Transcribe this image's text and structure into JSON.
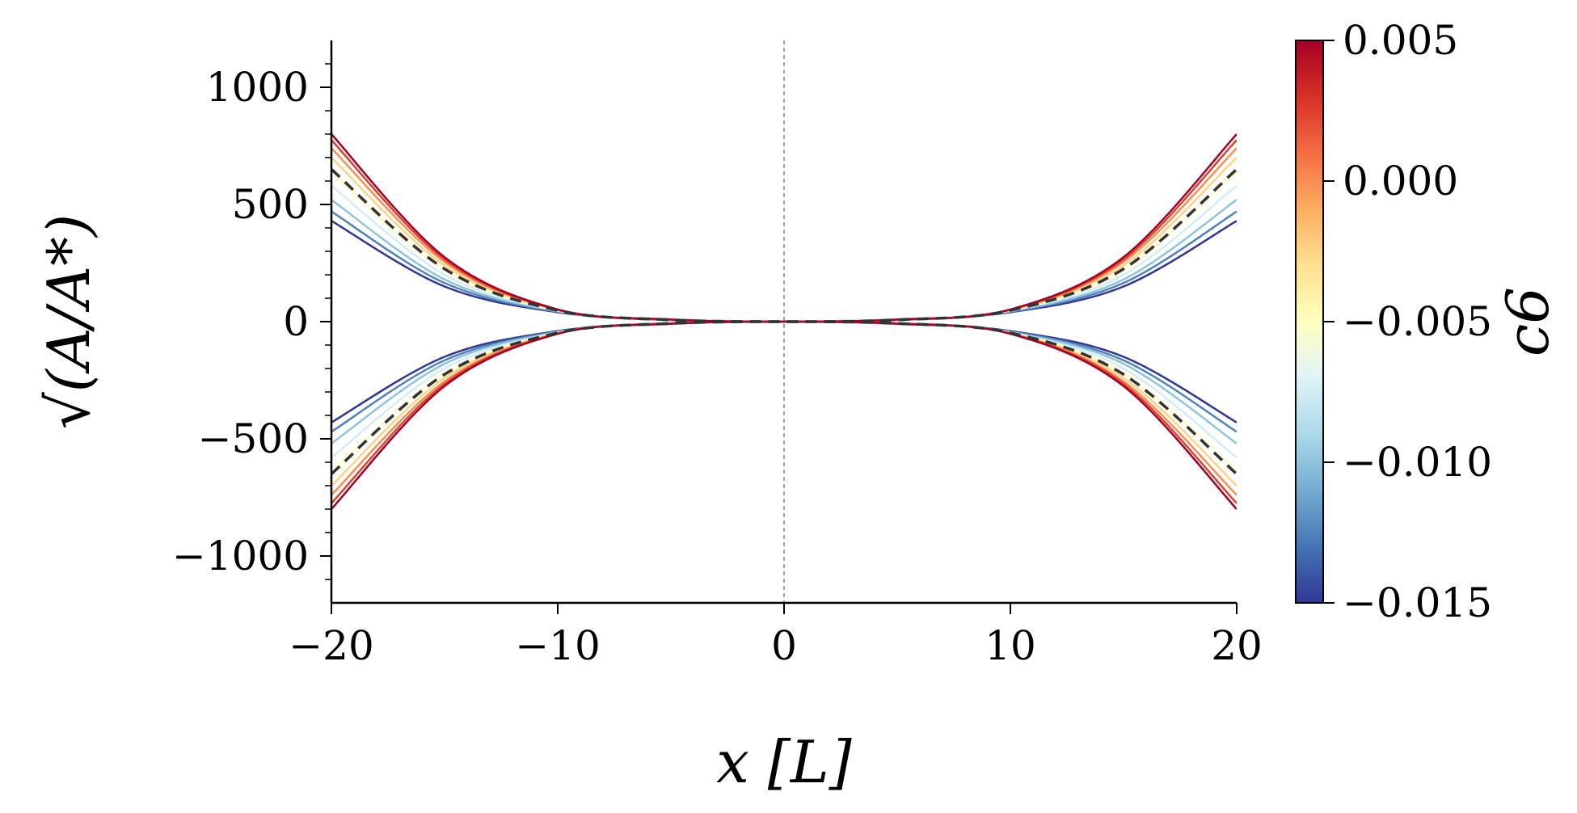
{
  "chart_data": {
    "type": "line",
    "xlabel": "x [L]",
    "ylabel": "√(A/A*)",
    "xlim": [
      -20,
      20
    ],
    "ylim": [
      -1200,
      1200
    ],
    "x_ticks": [
      {
        "value": -20,
        "label": "−20"
      },
      {
        "value": -10,
        "label": "−10"
      },
      {
        "value": 0,
        "label": "0"
      },
      {
        "value": 10,
        "label": "10"
      },
      {
        "value": 20,
        "label": "20"
      }
    ],
    "y_ticks": [
      {
        "value": 1000,
        "label": "1000"
      },
      {
        "value": 500,
        "label": "500"
      },
      {
        "value": 0,
        "label": "0"
      },
      {
        "value": -500,
        "label": "−500"
      },
      {
        "value": -1000,
        "label": "−1000"
      }
    ],
    "grid": false,
    "symmetric_about_zero": true,
    "vertical_reference_line": {
      "x": 0,
      "style": "dashed",
      "color": "#888888"
    },
    "series_family": {
      "parameter": "c6",
      "c6_values": [
        -0.015,
        -0.0125,
        -0.01,
        -0.0075,
        -0.005,
        -0.0025,
        0.0,
        0.0025,
        0.005
      ],
      "x": [
        -20,
        -15,
        -10,
        -5,
        0,
        5,
        10,
        15,
        20
      ],
      "upper_values_by_c6": [
        [
          430,
          150,
          40,
          6,
          0,
          6,
          40,
          150,
          430
        ],
        [
          470,
          165,
          42,
          6,
          0,
          6,
          42,
          165,
          470
        ],
        [
          520,
          180,
          45,
          7,
          0,
          7,
          45,
          180,
          520
        ],
        [
          580,
          200,
          47,
          7,
          0,
          7,
          47,
          200,
          580
        ],
        [
          640,
          220,
          48,
          8,
          0,
          8,
          48,
          220,
          640
        ],
        [
          700,
          240,
          49,
          8,
          0,
          8,
          49,
          240,
          700
        ],
        [
          740,
          255,
          50,
          8,
          0,
          8,
          50,
          255,
          740
        ],
        [
          775,
          265,
          51,
          9,
          0,
          9,
          51,
          265,
          775
        ],
        [
          800,
          275,
          52,
          9,
          0,
          9,
          52,
          275,
          800
        ]
      ],
      "colormap": "RdYlBu_r"
    },
    "reference_series": {
      "style": "dashed",
      "color": "#333333",
      "x": [
        -20,
        -15,
        -10,
        -5,
        0,
        5,
        10,
        15,
        20
      ],
      "upper_values": [
        650,
        225,
        48,
        8,
        0,
        8,
        48,
        225,
        650
      ]
    },
    "colorbar": {
      "label": "c6",
      "range": [
        -0.015,
        0.005
      ],
      "ticks": [
        {
          "value": 0.005,
          "label": "0.005"
        },
        {
          "value": 0.0,
          "label": "0.000"
        },
        {
          "value": -0.005,
          "label": "−0.005"
        },
        {
          "value": -0.01,
          "label": "−0.010"
        },
        {
          "value": -0.015,
          "label": "−0.015"
        }
      ],
      "colors": [
        "#313695",
        "#4575b4",
        "#74add1",
        "#abd9e9",
        "#e0f3f8",
        "#ffffbf",
        "#fee090",
        "#fdae61",
        "#f46d43",
        "#d73027",
        "#a50026"
      ]
    }
  }
}
